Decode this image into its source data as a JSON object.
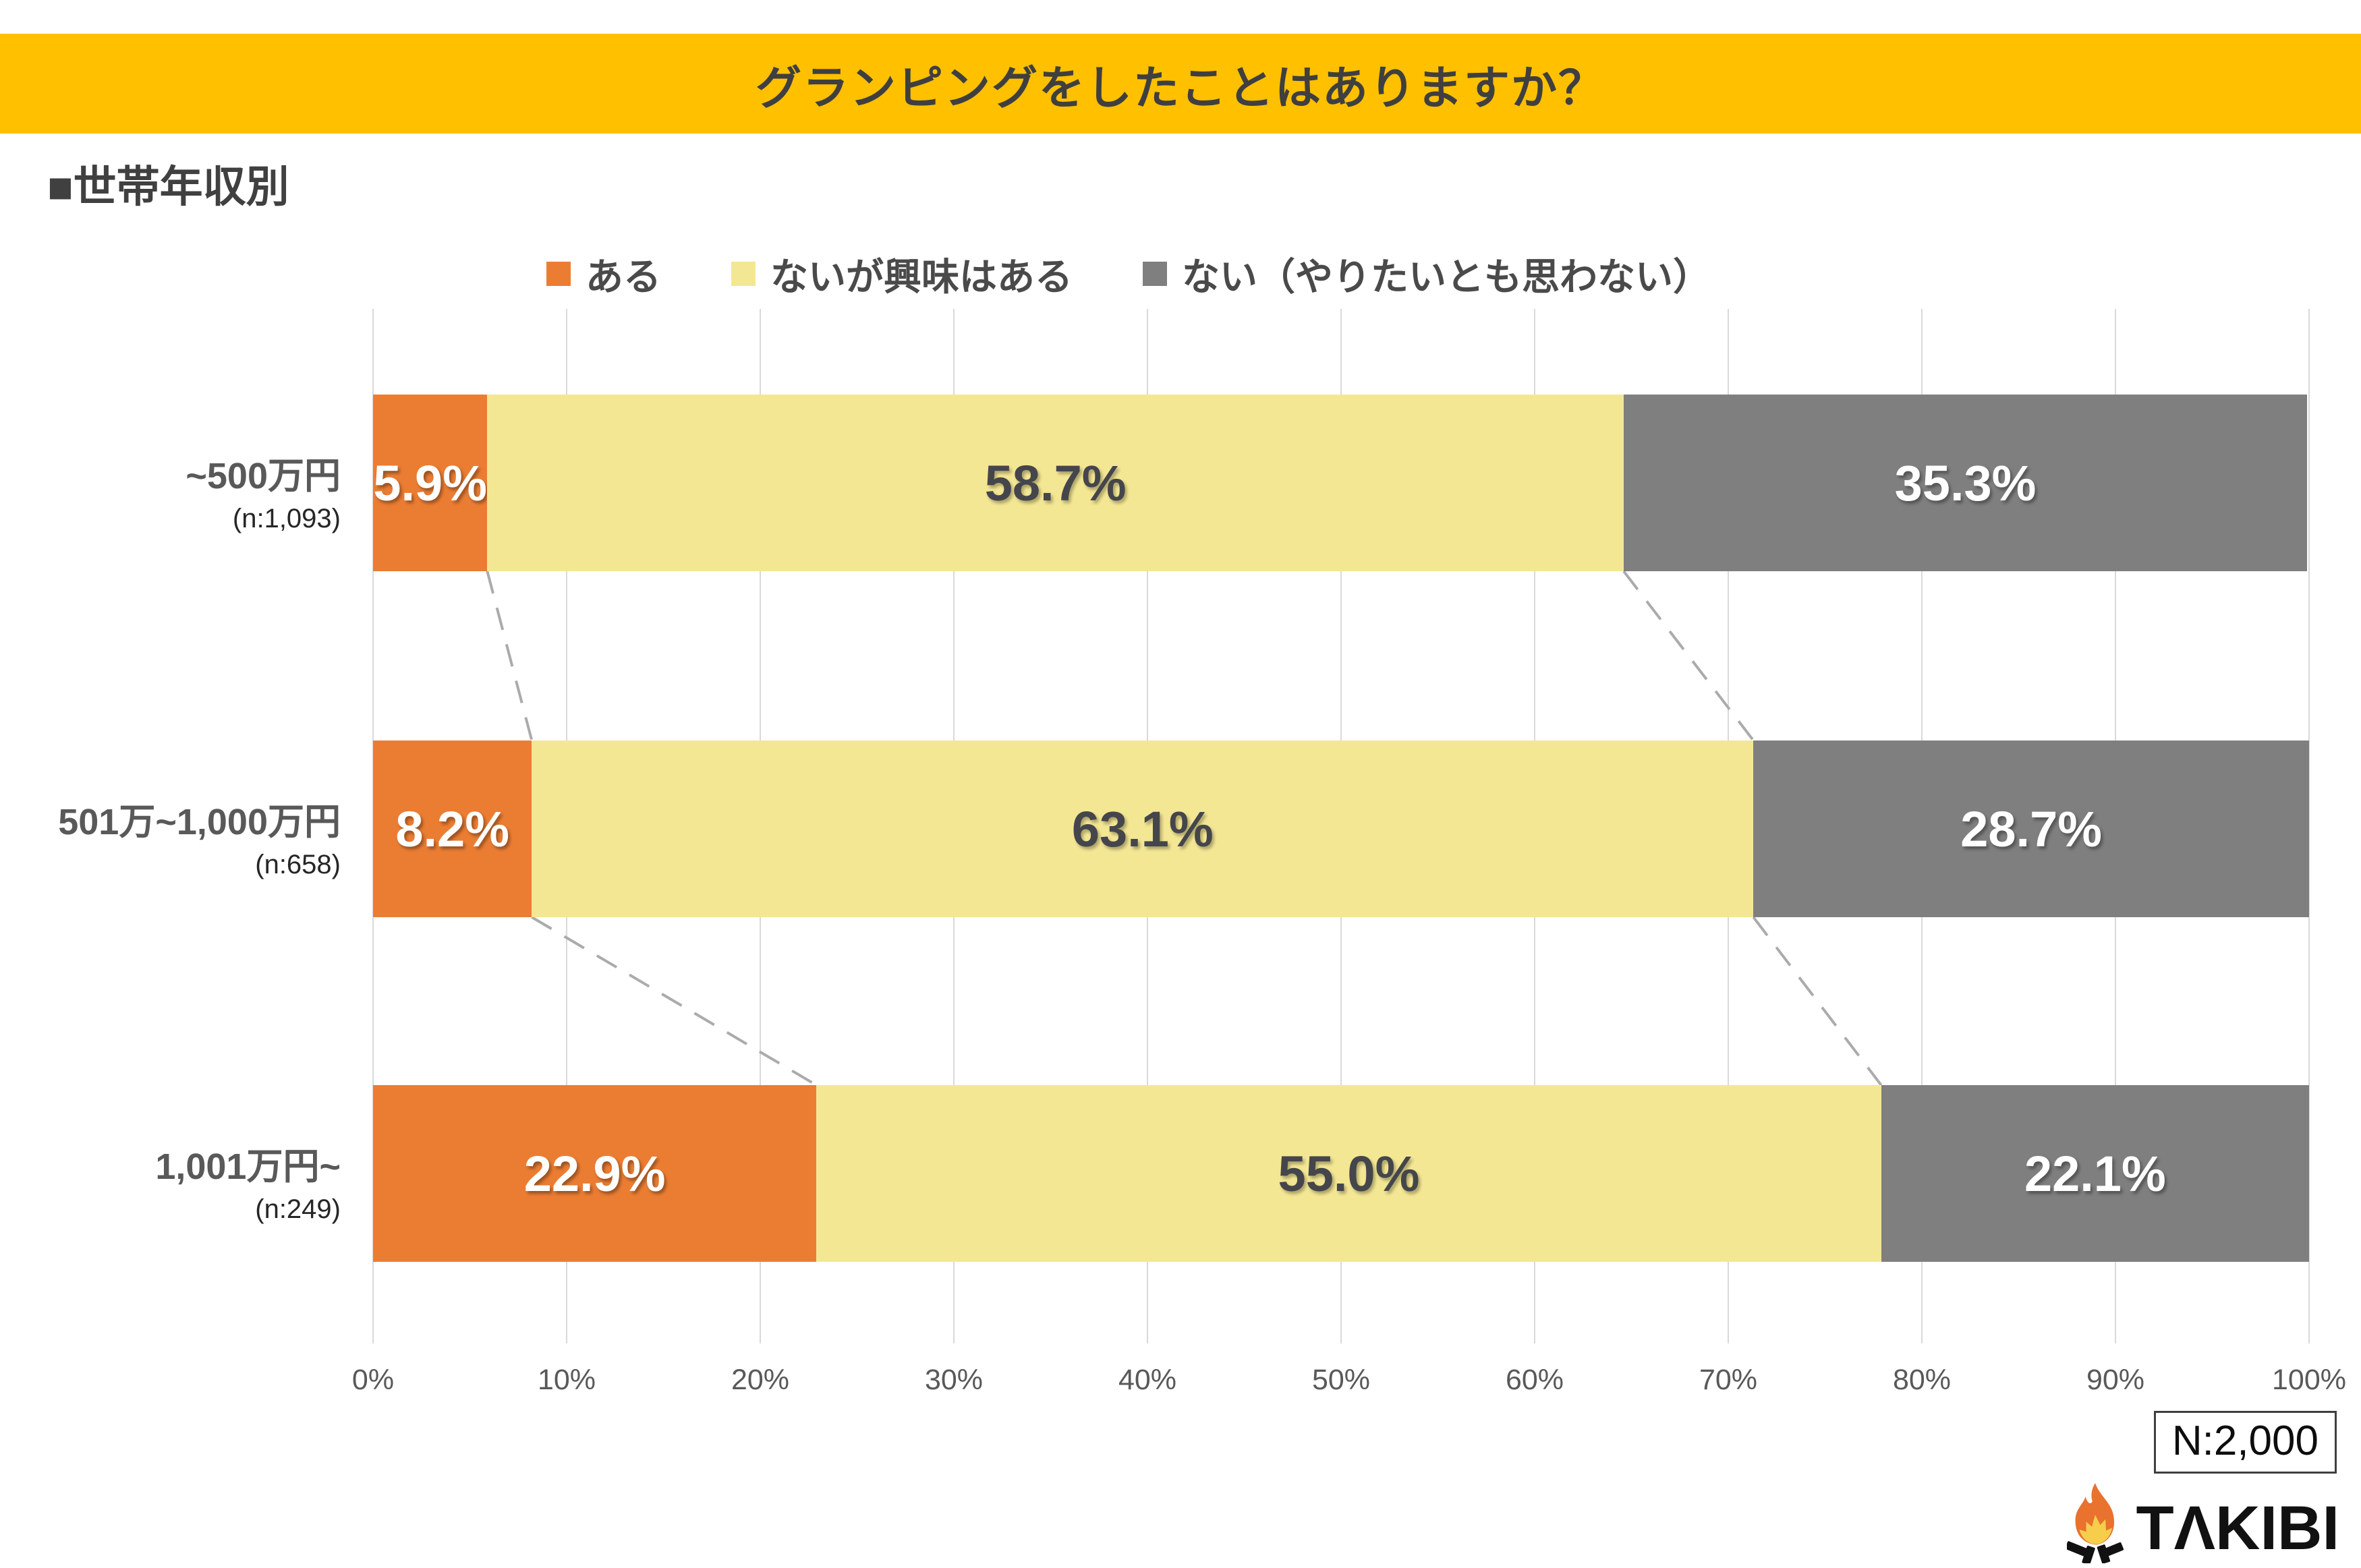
{
  "header": {
    "title": "グランピングをしたことはありますか？",
    "bg_color": "#FFC000"
  },
  "section": {
    "heading": "■世帯年収別"
  },
  "legend": [
    {
      "label": "ある",
      "color": "#EB7D33"
    },
    {
      "label": "ないが興味はある",
      "color": "#F4E794"
    },
    {
      "label": "ない（やりたいとも思わない）",
      "color": "#7F7F7F"
    }
  ],
  "chart_data": {
    "type": "bar",
    "orientation": "horizontal_stacked",
    "title": "グランピングをしたことはありますか？ ■世帯年収別",
    "categories": [
      {
        "label": "~500万円",
        "n_label": "(n:1,093)"
      },
      {
        "label": "501万~1,000万円",
        "n_label": "(n:658)"
      },
      {
        "label": "1,001万円~",
        "n_label": "(n:249)"
      }
    ],
    "series": [
      {
        "name": "ある",
        "color": "#EB7D33",
        "label_color": "#FFFFFF",
        "values": [
          5.9,
          8.2,
          22.9
        ]
      },
      {
        "name": "ないが興味はある",
        "color": "#F4E794",
        "label_color": "#45464B",
        "values": [
          58.7,
          63.1,
          55.0
        ]
      },
      {
        "name": "ない（やりたいとも思わない）",
        "color": "#7F7F7F",
        "label_color": "#FFFFFF",
        "values": [
          35.3,
          28.7,
          22.1
        ]
      }
    ],
    "value_labels": [
      [
        "5.9%",
        "58.7%",
        "35.3%"
      ],
      [
        "8.2%",
        "63.1%",
        "28.7%"
      ],
      [
        "22.9%",
        "55.0%",
        "22.1%"
      ]
    ],
    "x_ticks": [
      "0%",
      "10%",
      "20%",
      "30%",
      "40%",
      "50%",
      "60%",
      "70%",
      "80%",
      "90%",
      "100%"
    ],
    "xlim": [
      0,
      100
    ],
    "grid": true,
    "legend_position": "top",
    "connector_color": "#ABABAB",
    "gridline_color": "#D9D9D9"
  },
  "footer": {
    "n_total": "N:2,000",
    "logo_text": "TΛKIBI"
  }
}
